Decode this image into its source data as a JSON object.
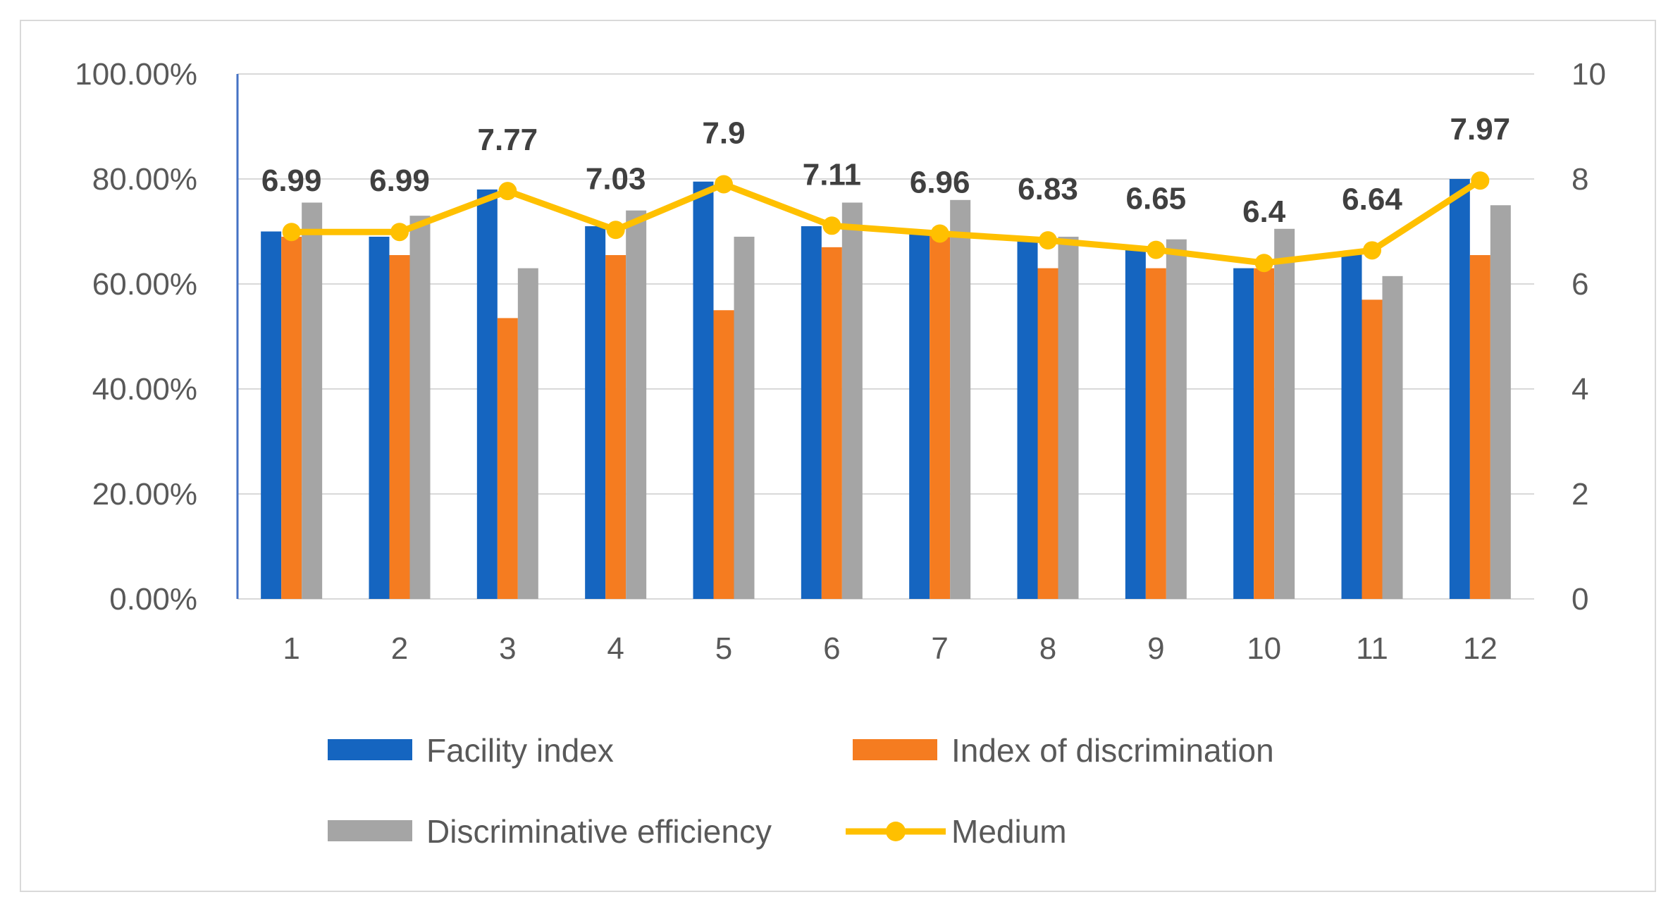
{
  "chart_data": {
    "type": "bar",
    "categories": [
      "1",
      "2",
      "3",
      "4",
      "5",
      "6",
      "7",
      "8",
      "9",
      "10",
      "11",
      "12"
    ],
    "series": [
      {
        "name": "Facility index",
        "type": "bar",
        "axis": "left",
        "color": "#1565C0",
        "values": [
          70,
          69,
          78,
          71,
          79.5,
          71,
          70,
          69,
          67,
          63,
          66,
          80
        ]
      },
      {
        "name": "Index of discrimination",
        "type": "bar",
        "axis": "left",
        "color": "#F57C20",
        "values": [
          69,
          65.5,
          53.5,
          65.5,
          55,
          67,
          70,
          63,
          63,
          63,
          57,
          65.5
        ]
      },
      {
        "name": "Discriminative efficiency",
        "type": "bar",
        "axis": "left",
        "color": "#A5A5A5",
        "values": [
          75.5,
          73,
          63,
          74,
          69,
          75.5,
          76,
          69,
          68.5,
          70.5,
          61.5,
          75
        ]
      },
      {
        "name": "Medium",
        "type": "line",
        "axis": "right",
        "color": "#FFC000",
        "values": [
          6.99,
          6.99,
          7.77,
          7.03,
          7.9,
          7.11,
          6.96,
          6.83,
          6.65,
          6.4,
          6.64,
          7.97
        ]
      }
    ],
    "left_axis": {
      "ylim": [
        0,
        100
      ],
      "ticks": [
        "0.00%",
        "20.00%",
        "40.00%",
        "60.00%",
        "80.00%",
        "100.00%"
      ]
    },
    "right_axis": {
      "ylim": [
        0,
        10
      ],
      "ticks": [
        "0",
        "2",
        "4",
        "6",
        "8",
        "10"
      ]
    },
    "data_labels": [
      "6.99",
      "6.99",
      "7.77",
      "7.03",
      "7.9",
      "7.11",
      "6.96",
      "6.83",
      "6.65",
      "6.4",
      "6.64",
      "7.97"
    ],
    "grid": true,
    "legend_position": "bottom",
    "title": "",
    "xlabel": "",
    "ylabel": ""
  }
}
